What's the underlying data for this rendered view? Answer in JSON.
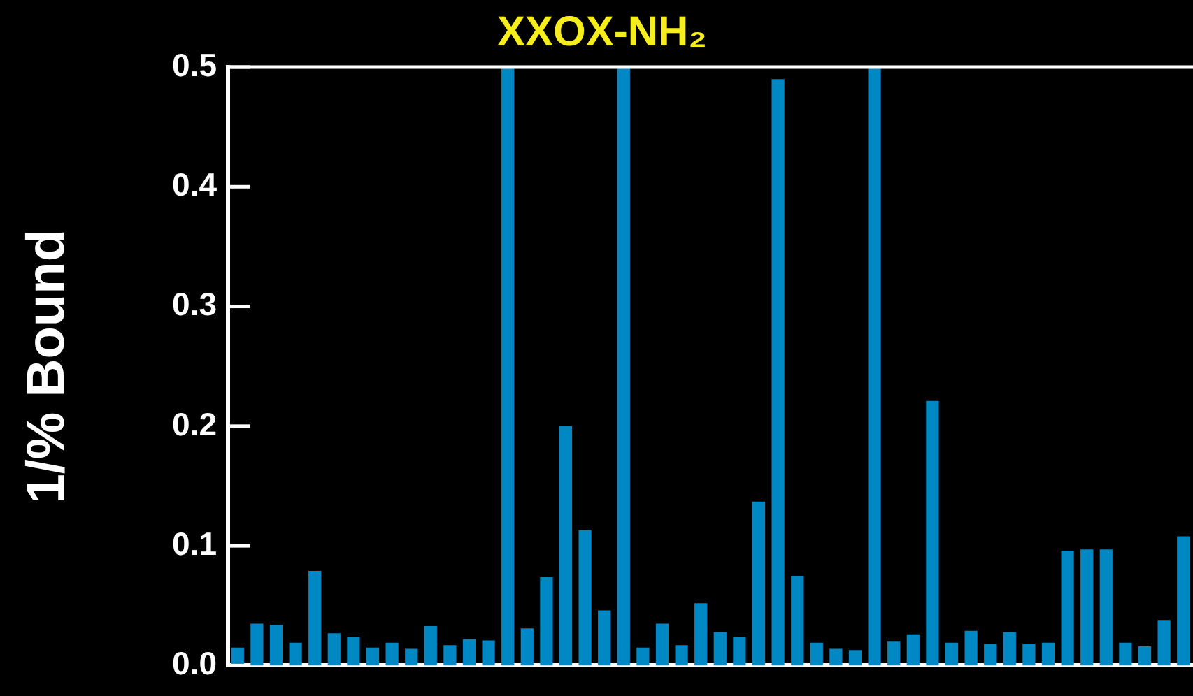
{
  "chart_data": {
    "type": "bar",
    "title": "XXOX-NH₂",
    "ylabel": "1/% Bound",
    "categories": [
      null,
      null,
      null,
      null,
      null,
      null,
      null,
      null,
      null,
      null,
      null,
      null,
      null,
      null,
      null,
      null,
      null,
      null,
      null,
      null,
      null,
      null,
      null,
      null,
      null,
      null,
      null,
      null,
      null,
      null,
      null,
      null,
      null,
      null,
      null,
      null,
      null,
      null,
      null,
      null,
      null,
      null,
      null,
      null,
      null,
      null,
      null,
      null,
      null,
      null
    ],
    "values": [
      0.015,
      0.035,
      0.034,
      0.019,
      0.079,
      0.027,
      0.024,
      0.015,
      0.019,
      0.014,
      0.033,
      0.017,
      0.022,
      0.021,
      0.5,
      0.031,
      0.074,
      0.2,
      0.113,
      0.046,
      0.5,
      0.015,
      0.035,
      0.017,
      0.052,
      0.028,
      0.024,
      0.137,
      0.49,
      0.075,
      0.019,
      0.014,
      0.013,
      0.5,
      0.02,
      0.026,
      0.221,
      0.019,
      0.029,
      0.018,
      0.028,
      0.018,
      0.019,
      0.096,
      0.097,
      0.097,
      0.019,
      0.016,
      0.038,
      0.108
    ],
    "color": "#0088c4",
    "ylim": [
      0,
      0.5
    ],
    "yticks": [
      {
        "value": 0,
        "label": "0.0"
      },
      {
        "value": 0.1,
        "label": "0.1"
      },
      {
        "value": 0.2,
        "label": "0.2"
      },
      {
        "value": 0.3,
        "label": "0.3"
      },
      {
        "value": 0.4,
        "label": "0.4"
      },
      {
        "value": 0.5,
        "label": "0.5"
      }
    ],
    "grid": false
  }
}
